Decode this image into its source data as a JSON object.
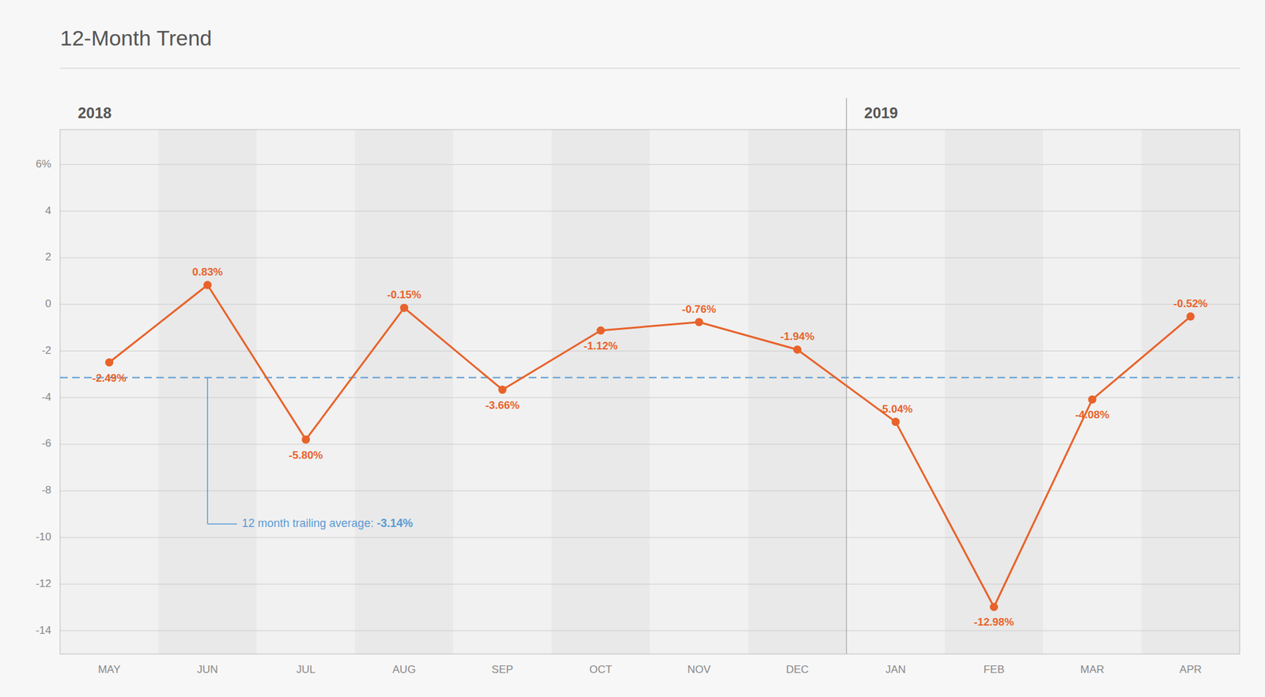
{
  "chart_data": {
    "type": "line",
    "title": "12-Month Trend",
    "categories": [
      "MAY",
      "JUN",
      "JUL",
      "AUG",
      "SEP",
      "OCT",
      "NOV",
      "DEC",
      "JAN",
      "FEB",
      "MAR",
      "APR"
    ],
    "values": [
      -2.49,
      0.83,
      -5.8,
      -0.15,
      -3.66,
      -1.12,
      -0.76,
      -1.94,
      -5.04,
      -12.98,
      -4.08,
      -0.52
    ],
    "value_labels": [
      "-2.49%",
      "0.83%",
      "-5.80%",
      "-0.15%",
      "-3.66%",
      "-1.12%",
      "-0.76%",
      "-1.94%",
      "-5.04%",
      "-12.98%",
      "-4.08%",
      "-0.52%"
    ],
    "color": "#E8622A",
    "data_labels": true,
    "ylim": [
      -15,
      7.5
    ],
    "yticks": [
      -14,
      -12,
      -10,
      -8,
      -6,
      -4,
      -2,
      0,
      2,
      4,
      {
        "value": 6,
        "label": "6%"
      }
    ],
    "grid": true,
    "annotations": [
      {
        "text": "12 month trailing average: ",
        "value": -3.14,
        "value_label": "-3.14%",
        "color": "#5B9BD5"
      }
    ],
    "category_groups": [
      {
        "label": "2018",
        "start": 0,
        "end": 7
      },
      {
        "label": "2019",
        "start": 8,
        "end": 11
      }
    ]
  }
}
